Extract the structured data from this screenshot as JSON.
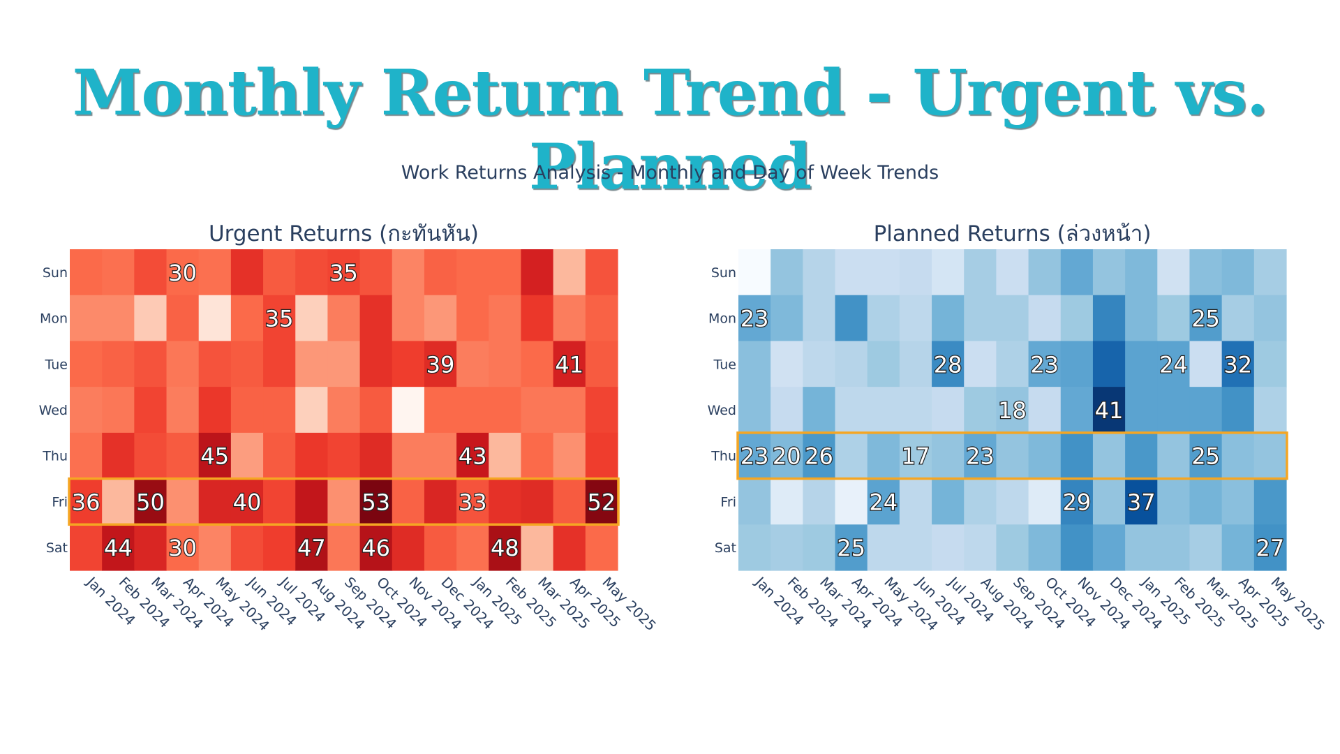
{
  "title": "Monthly Return Trend - Urgent vs. Planned",
  "subtitle": "Work Returns Analysis - Monthly and Day of Week Trends",
  "chart_data": [
    {
      "type": "heatmap",
      "title": "Urgent Returns (กะทันหัน)",
      "x": [
        "Jan 2024",
        "Feb 2024",
        "Mar 2024",
        "Apr 2024",
        "May 2024",
        "Jun 2024",
        "Jul 2024",
        "Aug 2024",
        "Sep 2024",
        "Oct 2024",
        "Nov 2024",
        "Dec 2024",
        "Jan 2025",
        "Feb 2025",
        "Mar 2025",
        "Apr 2025",
        "May 2025"
      ],
      "y": [
        "Sun",
        "Mon",
        "Tue",
        "Wed",
        "Thu",
        "Fri",
        "Sat"
      ],
      "z": [
        [
          30,
          29,
          34,
          30,
          29,
          38,
          32,
          34,
          35,
          33,
          26,
          31,
          30,
          30,
          41,
          18,
          33
        ],
        [
          25,
          25,
          15,
          31,
          10,
          30,
          35,
          14,
          27,
          38,
          26,
          23,
          30,
          28,
          37,
          27,
          31
        ],
        [
          30,
          31,
          33,
          28,
          33,
          32,
          35,
          23,
          23,
          38,
          36,
          39,
          27,
          28,
          30,
          41,
          32
        ],
        [
          27,
          28,
          35,
          27,
          37,
          31,
          31,
          14,
          27,
          32,
          5,
          30,
          30,
          30,
          28,
          28,
          35
        ],
        [
          29,
          38,
          34,
          32,
          45,
          22,
          32,
          37,
          35,
          39,
          27,
          27,
          43,
          18,
          30,
          24,
          36
        ],
        [
          36,
          18,
          50,
          24,
          40,
          40,
          35,
          44,
          24,
          53,
          31,
          40,
          33,
          38,
          39,
          32,
          52
        ],
        [
          35,
          44,
          40,
          30,
          26,
          34,
          36,
          47,
          28,
          46,
          39,
          32,
          29,
          48,
          18,
          38,
          30
        ]
      ],
      "labels": [
        [
          null,
          null,
          null,
          30,
          null,
          null,
          null,
          null,
          35,
          null,
          null,
          null,
          null,
          null,
          null,
          null,
          null
        ],
        [
          null,
          null,
          null,
          null,
          null,
          null,
          35,
          null,
          null,
          null,
          null,
          null,
          null,
          null,
          null,
          null,
          null
        ],
        [
          null,
          null,
          null,
          null,
          null,
          null,
          null,
          null,
          null,
          null,
          null,
          39,
          null,
          null,
          null,
          41,
          null
        ],
        [
          null,
          null,
          null,
          null,
          null,
          null,
          null,
          null,
          null,
          null,
          null,
          null,
          null,
          null,
          null,
          null,
          null
        ],
        [
          null,
          null,
          null,
          null,
          45,
          null,
          null,
          null,
          null,
          null,
          null,
          null,
          43,
          null,
          null,
          null,
          null
        ],
        [
          36,
          null,
          50,
          null,
          null,
          40,
          null,
          null,
          null,
          53,
          null,
          null,
          33,
          null,
          null,
          null,
          52
        ],
        [
          null,
          44,
          null,
          30,
          null,
          null,
          null,
          47,
          null,
          46,
          null,
          null,
          null,
          48,
          null,
          null,
          null
        ]
      ],
      "zrange": [
        5,
        55
      ],
      "colorscale": "Reds",
      "highlight_row": "Fri",
      "highlight_color": "#f5a623"
    },
    {
      "type": "heatmap",
      "title": "Planned Returns (ล่วงหน้า)",
      "x": [
        "Jan 2024",
        "Feb 2024",
        "Mar 2024",
        "Apr 2024",
        "May 2024",
        "Jun 2024",
        "Jul 2024",
        "Aug 2024",
        "Sep 2024",
        "Oct 2024",
        "Nov 2024",
        "Dec 2024",
        "Jan 2025",
        "Feb 2025",
        "Mar 2025",
        "Apr 2025",
        "May 2025"
      ],
      "y": [
        "Sun",
        "Mon",
        "Tue",
        "Wed",
        "Thu",
        "Fri",
        "Sat"
      ],
      "z": [
        [
          2,
          18,
          14,
          11,
          11,
          12,
          9,
          16,
          11,
          18,
          23,
          18,
          20,
          10,
          19,
          20,
          16
        ],
        [
          23,
          20,
          14,
          27,
          15,
          13,
          21,
          16,
          16,
          12,
          17,
          29,
          20,
          17,
          25,
          16,
          18
        ],
        [
          19,
          10,
          13,
          14,
          17,
          14,
          28,
          11,
          15,
          23,
          24,
          34,
          24,
          24,
          11,
          32,
          17
        ],
        [
          19,
          12,
          21,
          13,
          13,
          13,
          12,
          17,
          18,
          12,
          23,
          41,
          24,
          24,
          24,
          27,
          15
        ],
        [
          23,
          20,
          26,
          15,
          20,
          17,
          18,
          23,
          18,
          20,
          27,
          18,
          26,
          18,
          25,
          19,
          18
        ],
        [
          18,
          7,
          14,
          5,
          24,
          13,
          21,
          15,
          13,
          7,
          29,
          18,
          37,
          19,
          21,
          19,
          26
        ],
        [
          17,
          16,
          17,
          25,
          13,
          13,
          12,
          13,
          17,
          20,
          27,
          23,
          18,
          18,
          16,
          21,
          27
        ]
      ],
      "labels": [
        [
          null,
          null,
          null,
          null,
          null,
          null,
          null,
          null,
          null,
          null,
          null,
          null,
          null,
          null,
          null,
          null,
          null
        ],
        [
          23,
          null,
          null,
          null,
          null,
          null,
          null,
          null,
          null,
          null,
          null,
          null,
          null,
          null,
          25,
          null,
          null
        ],
        [
          null,
          null,
          null,
          null,
          null,
          null,
          28,
          null,
          null,
          23,
          null,
          null,
          null,
          24,
          null,
          32,
          null
        ],
        [
          null,
          null,
          null,
          null,
          null,
          null,
          null,
          null,
          18,
          null,
          null,
          41,
          null,
          null,
          null,
          null,
          null
        ],
        [
          23,
          20,
          26,
          null,
          null,
          17,
          null,
          23,
          null,
          null,
          null,
          null,
          null,
          null,
          25,
          null,
          null
        ],
        [
          null,
          null,
          null,
          null,
          24,
          null,
          null,
          null,
          null,
          null,
          29,
          null,
          37,
          null,
          null,
          null,
          null
        ],
        [
          null,
          null,
          null,
          25,
          null,
          null,
          null,
          null,
          null,
          null,
          null,
          null,
          null,
          null,
          null,
          null,
          27
        ]
      ],
      "zrange": [
        2,
        42
      ],
      "colorscale": "Blues",
      "highlight_row": "Thu",
      "highlight_color": "#f5a623"
    }
  ]
}
